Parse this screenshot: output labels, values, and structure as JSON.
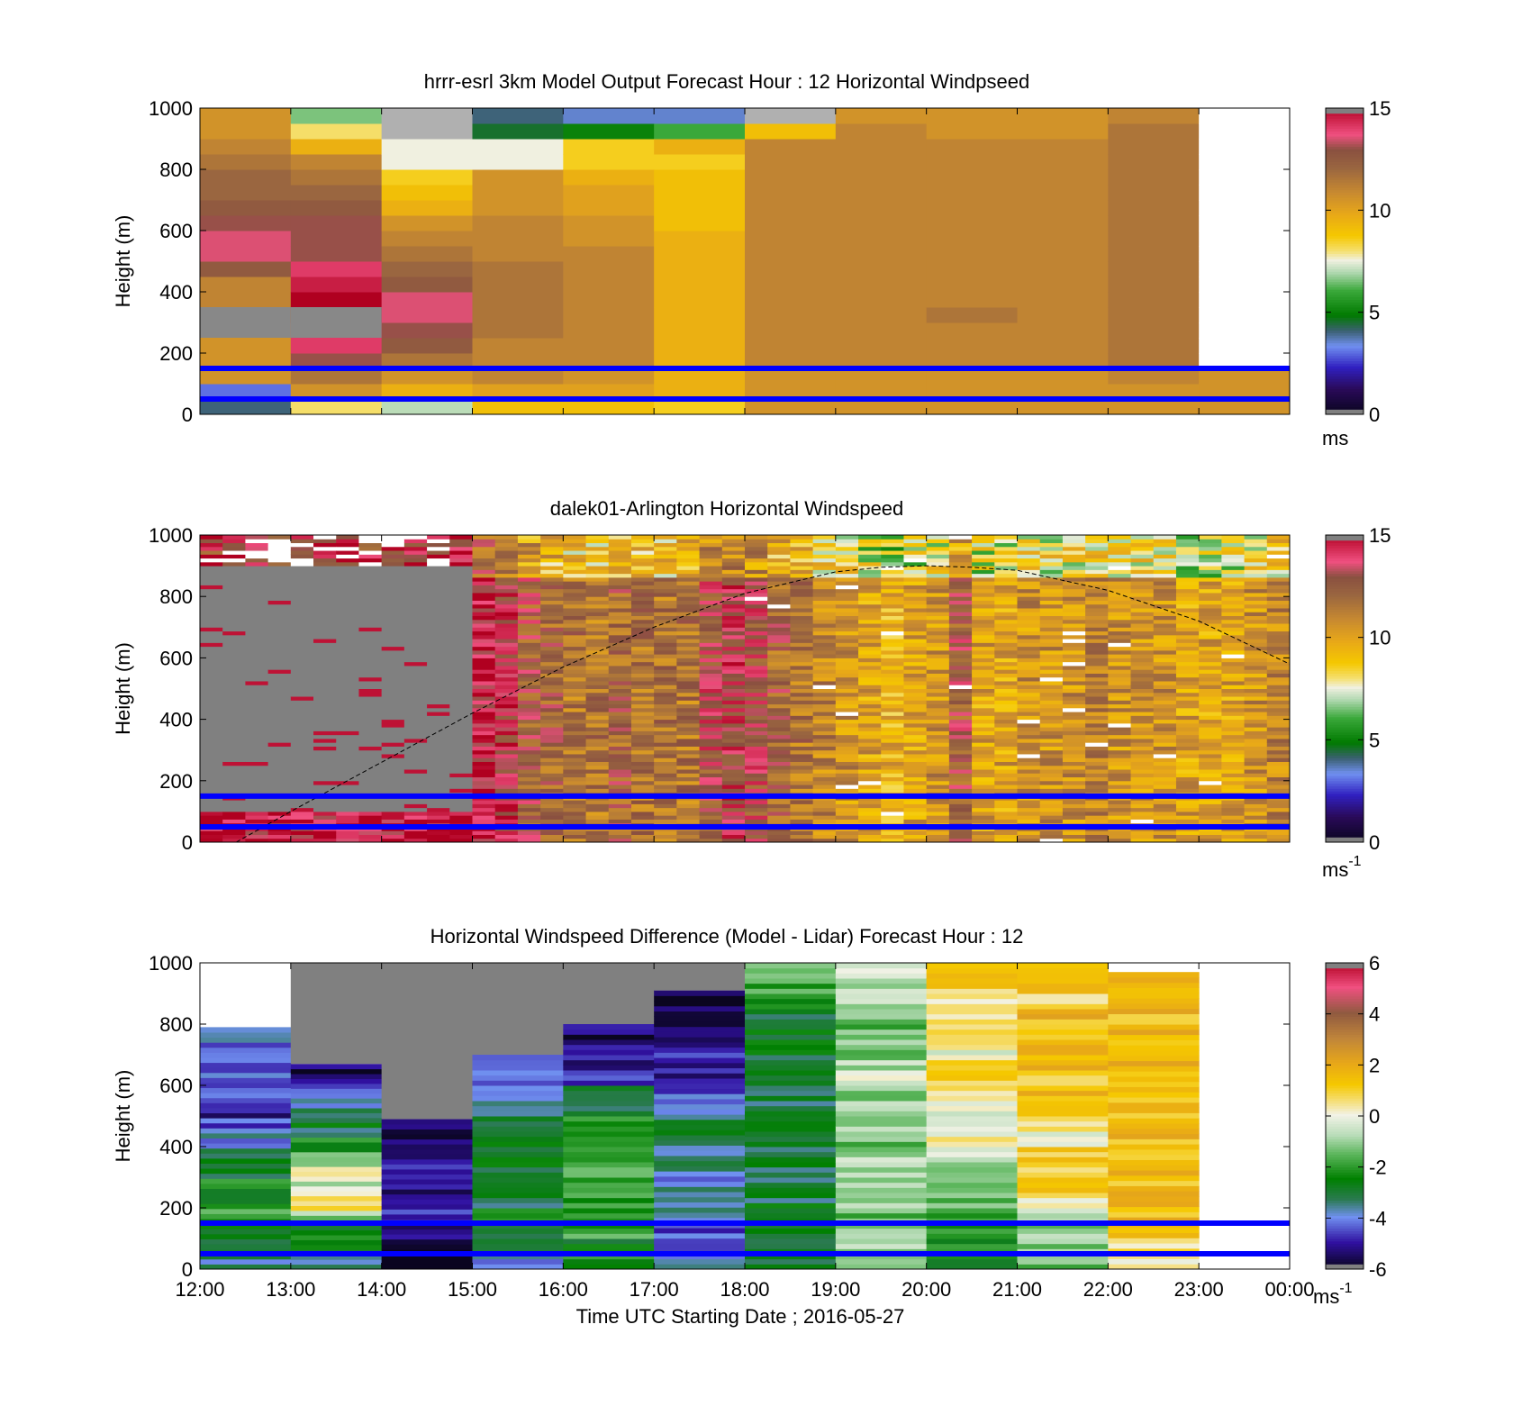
{
  "colors": {
    "model_heights": [
      25,
      75,
      125,
      175,
      225,
      275,
      325,
      375,
      425,
      475,
      525,
      575,
      625,
      675,
      725,
      775,
      825,
      875,
      925,
      975
    ],
    "background": "#ffffff",
    "band_line": "#0000ff",
    "missing": "#808080",
    "axis": "#000000"
  },
  "colormaps": {
    "speed": [
      [
        0.0,
        "#0a0520"
      ],
      [
        0.08,
        "#2a0a5a"
      ],
      [
        0.15,
        "#3020c0"
      ],
      [
        0.22,
        "#7090f0"
      ],
      [
        0.27,
        "#3a6070"
      ],
      [
        0.32,
        "#007a00"
      ],
      [
        0.4,
        "#3aa83a"
      ],
      [
        0.46,
        "#b0d8b0"
      ],
      [
        0.5,
        "#f0f0e0"
      ],
      [
        0.53,
        "#f5e070"
      ],
      [
        0.58,
        "#f5c800"
      ],
      [
        0.65,
        "#e8a818"
      ],
      [
        0.72,
        "#c88a30"
      ],
      [
        0.8,
        "#9a6640"
      ],
      [
        0.86,
        "#8a5040"
      ],
      [
        0.91,
        "#f05080"
      ],
      [
        1.0,
        "#b00020"
      ]
    ]
  },
  "chart_data": [
    {
      "type": "heatmap",
      "title": "hrrr-esrl 3km Model Output   Forecast Hour : 12 Horizontal Windpseed",
      "xlabel": "",
      "ylabel": "Height (m)",
      "ylim": [
        0,
        1000
      ],
      "yticks": [
        "0",
        "200",
        "400",
        "600",
        "800",
        "1000"
      ],
      "x_tick_labels": [],
      "colorbar": {
        "min": 0,
        "max": 15,
        "ticks": [
          "0",
          "5",
          "10",
          "15"
        ],
        "unit": "ms"
      },
      "horizontal_lines": [
        50,
        150
      ],
      "x_hours": [
        "12:00",
        "13:00",
        "14:00",
        "15:00",
        "16:00",
        "17:00",
        "18:00",
        "19:00",
        "20:00",
        "21:00",
        "22:00",
        "23:00"
      ],
      "speed_ms": [
        [
          4.0,
          3.0,
          10.5,
          10.5,
          10.5,
          10.5,
          10.5,
          11.0,
          11.0,
          12.5,
          13.5,
          13.5,
          13.0,
          12.5,
          12.0,
          12.0,
          11.5,
          11.0,
          10.5,
          10.5
        ],
        [
          8.0,
          10.5,
          11.5,
          13.0,
          14.0,
          14.0,
          15.0,
          15.0,
          14.5,
          14.0,
          13.0,
          13.0,
          13.0,
          12.5,
          12.0,
          11.5,
          11.0,
          9.5,
          8.0,
          6.5
        ],
        [
          7.0,
          9.5,
          10.5,
          11.5,
          12.5,
          13.0,
          13.5,
          13.5,
          12.5,
          12.0,
          11.5,
          11.0,
          10.5,
          9.5,
          9.0,
          8.5,
          7.5,
          7.5,
          null,
          null
        ],
        [
          9.0,
          10.0,
          11.0,
          11.0,
          11.0,
          11.5,
          11.5,
          11.5,
          11.5,
          11.5,
          11.0,
          11.0,
          11.0,
          10.5,
          10.5,
          10.5,
          7.5,
          7.5,
          4.5,
          4.0
        ],
        [
          9.0,
          10.0,
          10.5,
          11.0,
          11.0,
          11.0,
          11.0,
          11.0,
          11.0,
          11.0,
          11.0,
          10.5,
          10.5,
          10.0,
          10.0,
          9.5,
          8.5,
          8.5,
          5.0,
          3.5
        ],
        [
          8.5,
          9.5,
          9.5,
          9.5,
          9.5,
          9.5,
          9.5,
          9.5,
          9.5,
          9.5,
          9.5,
          9.5,
          9.0,
          9.0,
          9.0,
          9.0,
          8.5,
          9.5,
          6.0,
          3.5
        ],
        [
          10.5,
          10.5,
          10.5,
          11.0,
          11.0,
          11.0,
          11.0,
          11.0,
          11.0,
          11.0,
          11.0,
          11.0,
          11.0,
          11.0,
          11.0,
          11.0,
          11.0,
          11.0,
          9.0,
          null
        ],
        [
          10.5,
          10.5,
          10.5,
          11.0,
          11.0,
          11.0,
          11.0,
          11.0,
          11.0,
          11.0,
          11.0,
          11.0,
          11.0,
          11.0,
          11.0,
          11.0,
          11.0,
          11.0,
          11.0,
          10.5
        ],
        [
          10.5,
          10.5,
          10.5,
          11.0,
          11.0,
          11.0,
          11.5,
          11.0,
          11.0,
          11.0,
          11.0,
          11.0,
          11.0,
          11.0,
          11.0,
          11.0,
          11.0,
          11.0,
          10.5,
          10.5
        ],
        [
          10.5,
          10.5,
          10.5,
          11.0,
          11.0,
          11.0,
          11.0,
          11.0,
          11.0,
          11.0,
          11.0,
          11.0,
          11.0,
          11.0,
          11.0,
          11.0,
          11.0,
          11.0,
          10.5,
          10.5
        ],
        [
          10.5,
          10.5,
          11.0,
          11.5,
          11.5,
          11.5,
          11.5,
          11.5,
          11.5,
          11.5,
          11.5,
          11.5,
          11.5,
          11.5,
          11.5,
          11.5,
          11.5,
          11.5,
          11.5,
          11.0
        ],
        [
          10.5,
          10.5,
          10.5,
          null,
          null,
          null,
          null,
          null,
          null,
          null,
          null,
          null,
          null,
          null,
          null,
          null,
          null,
          null,
          null,
          null
        ]
      ]
    },
    {
      "type": "heatmap",
      "title": "dalek01-Arlington  Horizontal Windspeed",
      "xlabel": "",
      "ylabel": "Height (m)",
      "ylim": [
        0,
        1000
      ],
      "yticks": [
        "0",
        "200",
        "400",
        "600",
        "800",
        "1000"
      ],
      "x_tick_labels": [],
      "colorbar": {
        "min": 0,
        "max": 15,
        "ticks": [
          "0",
          "5",
          "10",
          "15"
        ],
        "unit": "ms",
        "unit_sup": "-1"
      },
      "horizontal_lines": [
        50,
        150
      ],
      "dashed_curve_x_hours": [
        12.4,
        13.0,
        14.0,
        15.0,
        16.0,
        17.0,
        18.0,
        19.0,
        19.5,
        20.0,
        20.5,
        21.0,
        22.0,
        23.0,
        24.0
      ],
      "dashed_curve_height_m": [
        0,
        100,
        260,
        420,
        570,
        700,
        810,
        880,
        895,
        900,
        895,
        885,
        820,
        720,
        580
      ],
      "column_speed_ms": [
        14.5,
        14.5,
        14.5,
        14.5,
        14.5,
        14.5,
        14.5,
        14.5,
        14.5,
        14.5,
        14.5,
        15.0,
        14.5,
        13.5,
        12.5,
        12.0,
        11.5,
        11.5,
        12.0,
        11.5,
        11.5,
        11.5,
        13.0,
        13.5,
        13.0,
        12.0,
        11.5,
        11.0,
        10.5,
        10.0,
        9.5,
        10.0,
        10.5,
        12.5,
        10.0,
        10.0,
        10.5,
        10.5,
        10.5,
        11.0,
        10.5,
        10.5,
        10.5,
        10.0,
        10.0,
        10.0,
        10.5,
        11.0
      ],
      "missing_region": {
        "x_hours": [
          12.0,
          15.0
        ],
        "height_m": [
          100,
          900
        ]
      }
    },
    {
      "type": "heatmap",
      "title": "Horizontal Windspeed Difference (Model - Lidar) Forecast Hour : 12",
      "xlabel": "Time UTC  Starting Date ; 2016-05-27",
      "ylabel": "Height (m)",
      "ylim": [
        0,
        1000
      ],
      "yticks": [
        "0",
        "200",
        "400",
        "600",
        "800",
        "1000"
      ],
      "x_tick_labels": [
        "12:00",
        "13:00",
        "14:00",
        "15:00",
        "16:00",
        "17:00",
        "18:00",
        "19:00",
        "20:00",
        "21:00",
        "22:00",
        "23:00",
        "00:00"
      ],
      "colorbar": {
        "min": -6,
        "max": 6,
        "ticks": [
          "-6",
          "-4",
          "-2",
          "0",
          "2",
          "4",
          "6"
        ],
        "unit": "ms",
        "unit_sup": "-1"
      },
      "horizontal_lines": [
        50,
        150
      ],
      "x_hours": [
        "12:00",
        "13:00",
        "14:00",
        "15:00",
        "16:00",
        "17:00",
        "18:00",
        "19:00",
        "20:00",
        "21:00",
        "22:00",
        "23:00"
      ],
      "difference_ms": [
        {
          "top_m": 790,
          "values_bottom_to_top": [
            -3.5,
            -3.0,
            -2.5,
            -2.0,
            -2.5,
            -2.5,
            -3.0,
            -3.0,
            -4.0,
            -4.5,
            -5.0,
            -4.5,
            -4.5,
            -4.5,
            -4.0,
            -4.0
          ]
        },
        {
          "top_m": 670,
          "values_bottom_to_top": [
            -3.5,
            -2.5,
            -2.5,
            -1.0,
            0.5,
            -0.5,
            0.5,
            -1.5,
            -2.5,
            -3.0,
            -3.5,
            -4.0,
            -4.5,
            -5.5
          ]
        },
        {
          "top_m": 490,
          "values_bottom_to_top": [
            -6.0,
            -6.0,
            -5.5,
            -5.0,
            -5.0,
            -5.0,
            -5.0,
            -5.0,
            -5.5,
            -5.5
          ]
        },
        {
          "top_m": 700,
          "values_bottom_to_top": [
            -4.0,
            -3.0,
            -3.0,
            -2.5,
            -3.0,
            -3.0,
            -3.0,
            -2.5,
            -3.0,
            -3.0,
            -3.5,
            -4.0,
            -4.5,
            -5.0
          ]
        },
        {
          "top_m": 800,
          "values_bottom_to_top": [
            -2.5,
            -2.5,
            -2.0,
            -2.0,
            -2.0,
            -2.0,
            -2.0,
            -2.0,
            -2.5,
            -2.5,
            -3.0,
            -3.5,
            -4.5,
            -5.0,
            -5.5,
            -5.5
          ]
        },
        {
          "top_m": 910,
          "values_bottom_to_top": [
            -4.0,
            -4.0,
            -4.5,
            -4.0,
            -3.5,
            -4.0,
            -3.5,
            -4.0,
            -3.0,
            -3.0,
            -4.0,
            -4.5,
            -5.0,
            -5.0,
            -5.0,
            -5.5,
            -5.5,
            -6.0
          ]
        },
        {
          "top_m": 1000,
          "values_bottom_to_top": [
            -3.0,
            -3.0,
            -3.0,
            -3.0,
            -3.0,
            -3.0,
            -3.0,
            -3.0,
            -3.0,
            -3.0,
            -3.0,
            -3.0,
            -3.0,
            -3.0,
            -3.0,
            -3.0,
            -3.0,
            -2.5,
            -2.0,
            -1.5
          ]
        },
        {
          "top_m": 1000,
          "values_bottom_to_top": [
            -1.0,
            -1.0,
            -1.0,
            -1.5,
            -1.0,
            -1.0,
            -1.0,
            -1.0,
            -1.5,
            -1.0,
            -0.5,
            -1.0,
            -0.5,
            -1.0,
            -1.5,
            -1.5,
            -1.5,
            -1.0,
            -1.0,
            -0.5
          ]
        },
        {
          "top_m": 1000,
          "values_bottom_to_top": [
            -2.5,
            -2.5,
            -2.0,
            -2.0,
            -1.5,
            -1.0,
            -1.0,
            -0.5,
            0.0,
            -0.5,
            0.0,
            0.5,
            1.0,
            0.5,
            0.0,
            0.5,
            0.5,
            0.0,
            1.0,
            1.5
          ]
        },
        {
          "top_m": 1000,
          "values_bottom_to_top": [
            -1.5,
            -1.5,
            -1.0,
            -0.5,
            0.5,
            1.0,
            0.5,
            1.0,
            0.0,
            0.5,
            1.0,
            1.5,
            1.0,
            1.5,
            2.0,
            1.5,
            1.5,
            0.5,
            1.5,
            1.5
          ]
        },
        {
          "top_m": 970,
          "values_bottom_to_top": [
            0.5,
            0.5,
            1.0,
            1.5,
            1.5,
            1.5,
            2.0,
            1.5,
            1.5,
            1.5,
            1.5,
            1.5,
            1.5,
            1.5,
            1.5,
            1.5,
            1.5,
            1.5,
            2.0
          ]
        }
      ]
    }
  ]
}
